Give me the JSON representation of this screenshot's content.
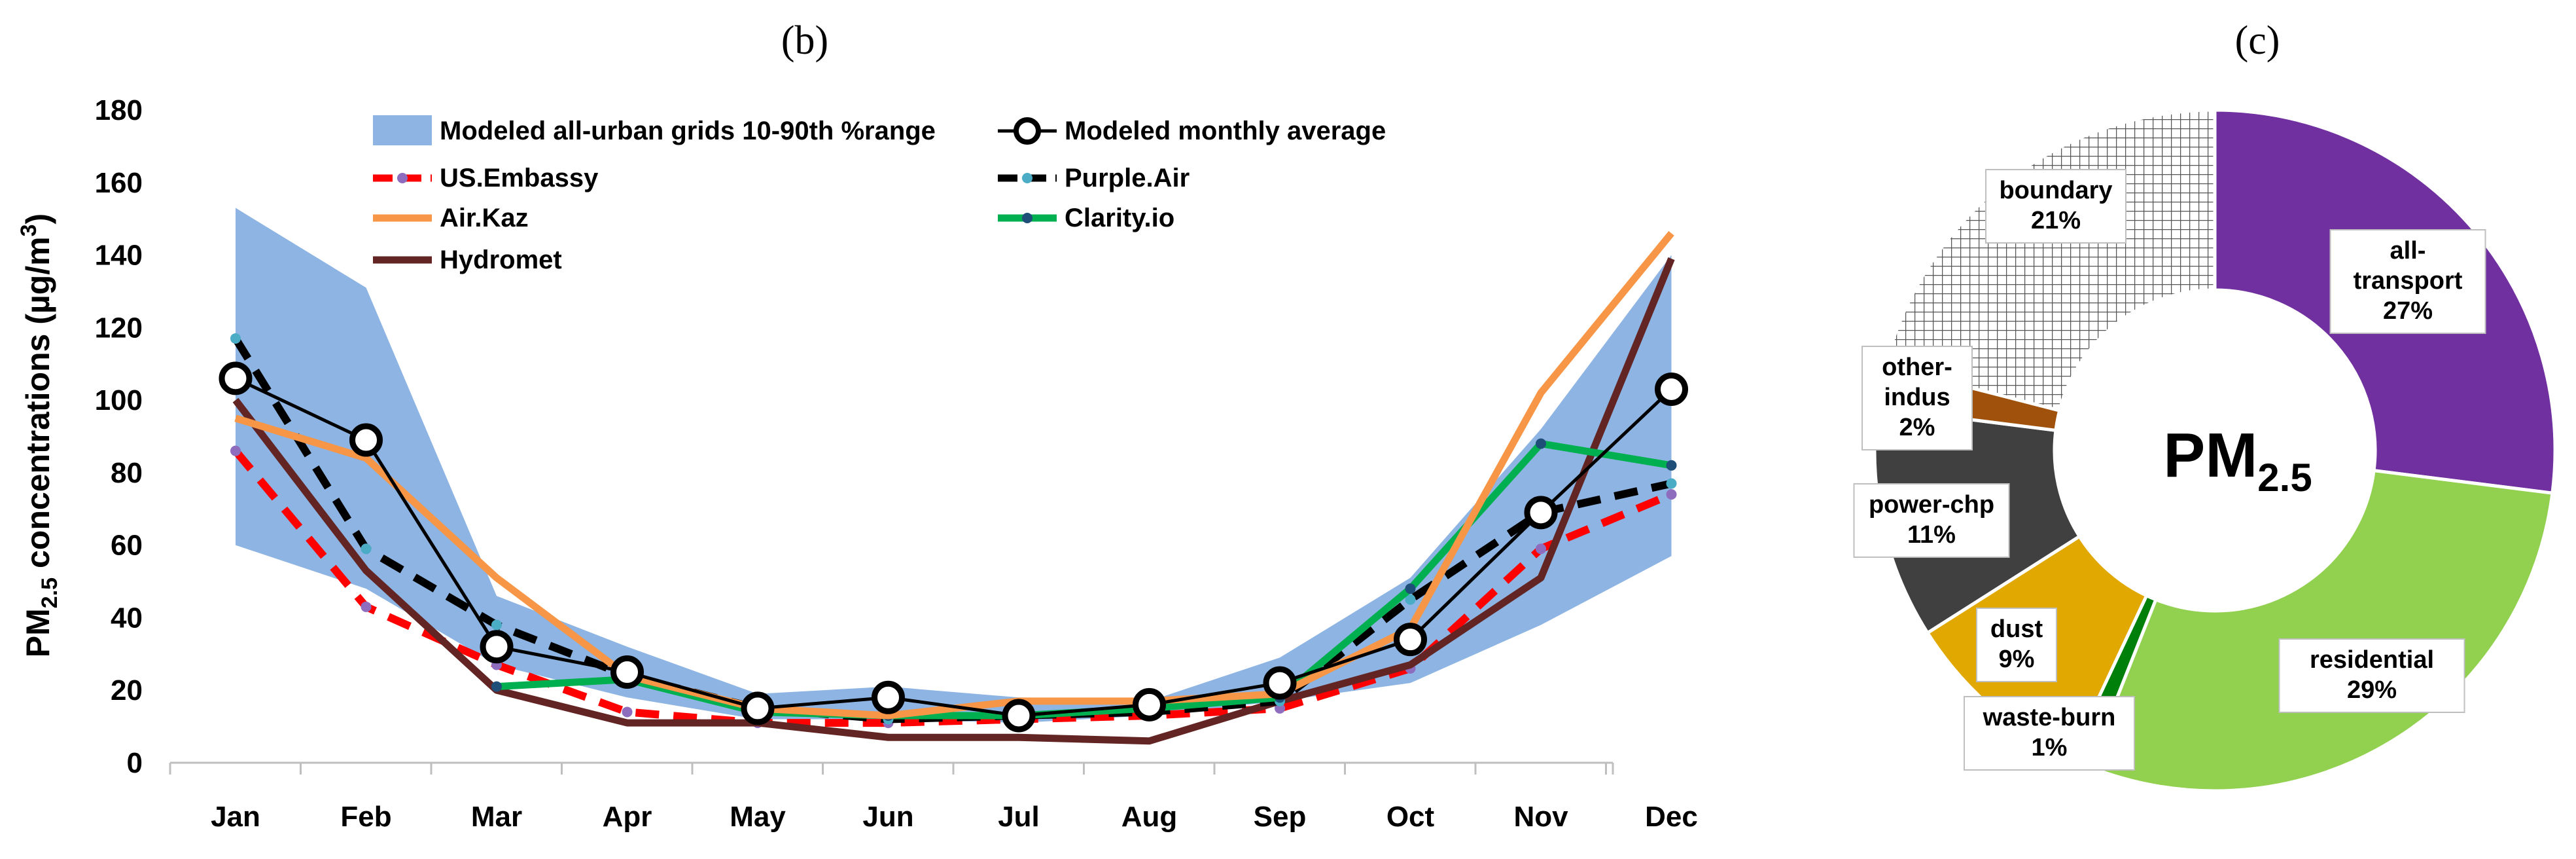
{
  "figure": {
    "panel_b_label": "(b)",
    "panel_c_label": "(c)"
  },
  "chart_data": [
    {
      "type": "line",
      "panel": "(b)",
      "ylabel_main": "PM",
      "ylabel_sub": "2.5",
      "ylabel_rest": " concentrations (µg/m",
      "ylabel_sup": "3",
      "ylabel_close": ")",
      "ylim": [
        0,
        180
      ],
      "yticks": [
        "0",
        "20",
        "40",
        "60",
        "80",
        "100",
        "120",
        "140",
        "160",
        "180"
      ],
      "grid": false,
      "legend_position": "top",
      "categories": [
        "Jan",
        "Feb",
        "Mar",
        "Apr",
        "May",
        "Jun",
        "Jul",
        "Aug",
        "Sep",
        "Oct",
        "Nov",
        "Dec"
      ],
      "band": {
        "name": "Modeled all-urban grids 10-90th %range",
        "color": "#8db4e2",
        "low": [
          60,
          48,
          27,
          18,
          12,
          12,
          11,
          13,
          17,
          22,
          38,
          57
        ],
        "high": [
          153,
          131,
          46,
          32,
          19,
          21,
          18,
          17,
          29,
          51,
          92,
          140
        ]
      },
      "series": [
        {
          "name": "Modeled monthly average",
          "color": "#000000",
          "style": "solid-circles",
          "values": [
            106,
            89,
            32,
            25,
            15,
            18,
            13,
            16,
            22,
            34,
            69,
            103
          ]
        },
        {
          "name": "US.Embassy",
          "color": "#ff0000",
          "marker_color": "#8e6dbf",
          "style": "dashed",
          "values": [
            86,
            43,
            27,
            14,
            11,
            11,
            12,
            13,
            15,
            26,
            59,
            74
          ]
        },
        {
          "name": "Purple.Air",
          "color": "#000000",
          "marker_color": "#4bacc6",
          "style": "dashed",
          "values": [
            117,
            59,
            38,
            24,
            15,
            12,
            13,
            14,
            17,
            45,
            69,
            77
          ]
        },
        {
          "name": "Air.Kaz",
          "color": "#f79646",
          "style": "solid",
          "values": [
            95,
            84,
            51,
            24,
            15,
            13,
            17,
            17,
            19,
            37,
            102,
            146
          ]
        },
        {
          "name": "Clarity.io",
          "color": "#00b050",
          "marker_color": "#1f4e79",
          "style": "solid",
          "values": [
            null,
            null,
            21,
            23,
            14,
            13,
            13,
            15,
            18,
            48,
            88,
            82
          ]
        },
        {
          "name": "Hydromet",
          "color": "#632523",
          "style": "solid",
          "values": [
            100,
            53,
            20,
            11,
            11,
            7,
            7,
            6,
            17,
            27,
            51,
            139
          ]
        }
      ]
    },
    {
      "type": "pie",
      "panel": "(c)",
      "center_label_main": "PM",
      "center_label_sub": "2.5",
      "slices": [
        {
          "name": "all-transport",
          "line1": "all-",
          "line2": "transport",
          "pct_label": "27%",
          "value": 27,
          "color": "#7030a0"
        },
        {
          "name": "residential",
          "line1": "residential",
          "line2": "",
          "pct_label": "29%",
          "value": 29,
          "color": "#92d050"
        },
        {
          "name": "waste-burn",
          "line1": "waste-burn",
          "line2": "",
          "pct_label": "1%",
          "value": 1,
          "color": "#00800a"
        },
        {
          "name": "dust",
          "line1": "dust",
          "line2": "",
          "pct_label": "9%",
          "value": 9,
          "color": "#e0a800"
        },
        {
          "name": "power-chp",
          "line1": "power-chp",
          "line2": "",
          "pct_label": "11%",
          "value": 11,
          "color": "#404040"
        },
        {
          "name": "other-indus",
          "line1": "other-",
          "line2": "indus",
          "pct_label": "2%",
          "value": 2,
          "color": "#a0520c"
        },
        {
          "name": "boundary",
          "line1": "boundary",
          "line2": "",
          "pct_label": "21%",
          "value": 21,
          "color": "#ffffff",
          "pattern": "grid"
        }
      ]
    }
  ]
}
